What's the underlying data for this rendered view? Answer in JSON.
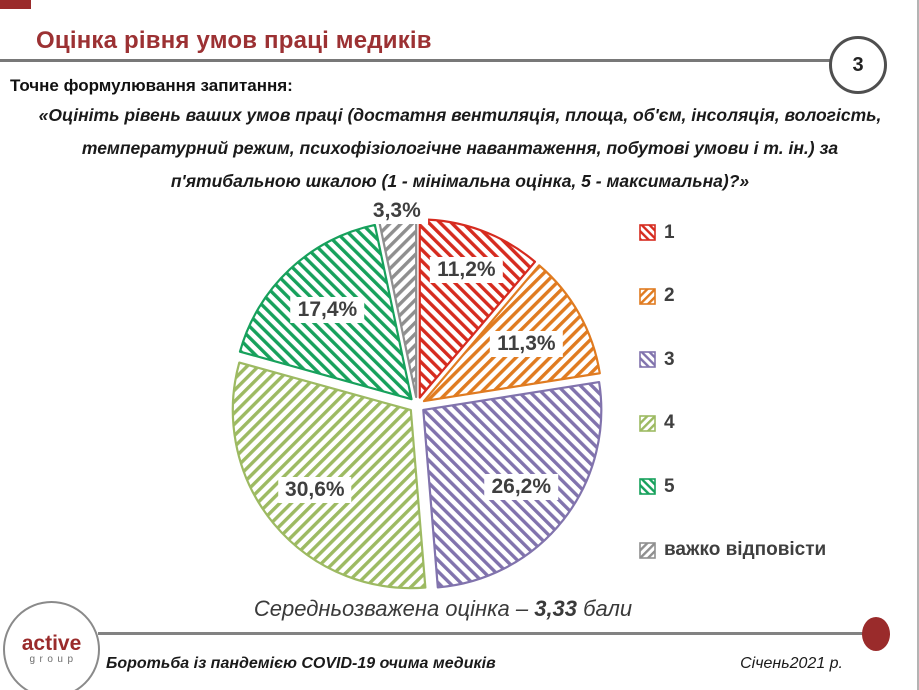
{
  "theme": {
    "accent_red": "#9A2B2B",
    "title_red": "#9C3133",
    "rule_gray": "#787878",
    "label_text_gray": "#3F3F3F"
  },
  "header": {
    "title": "Оцінка рівня умов праці медиків",
    "page_number": "3"
  },
  "question": {
    "label": "Точне формулювання запитання:",
    "lines": [
      "«Оцініть рівень ваших умов праці (достатня вентиляція, площа, об'єм, інсоляція, вологість,",
      "температурний режим, психофізіологічне навантаження, побутові умови і т. ін.) за",
      "п'ятибальною шкалою (1 - мінімальна оцінка, 5 - максимальна)?»"
    ]
  },
  "chart_data": {
    "type": "pie",
    "title": "",
    "unit": "%",
    "start_angle_deg": 0,
    "direction": "clockwise",
    "legend_position": "right",
    "slices": [
      {
        "label": "1",
        "value": 11.2,
        "display": "11,2%",
        "color": "#D62B1F",
        "hatch": "\\"
      },
      {
        "label": "2",
        "value": 11.3,
        "display": "11,3%",
        "color": "#E07B20",
        "hatch": "/"
      },
      {
        "label": "3",
        "value": 26.2,
        "display": "26,2%",
        "color": "#8173AD",
        "hatch": "\\"
      },
      {
        "label": "4",
        "value": 30.6,
        "display": "30,6%",
        "color": "#9DBA62",
        "hatch": "/"
      },
      {
        "label": "5",
        "value": 17.4,
        "display": "17,4%",
        "color": "#17A15C",
        "hatch": "\\"
      },
      {
        "label": "важко відповісти",
        "value": 3.3,
        "display": "3,3%",
        "color": "#8F8F8F",
        "hatch": "/"
      }
    ]
  },
  "summary": {
    "prefix": "Середньозважена оцінка – ",
    "value": "3,33",
    "suffix": " бали"
  },
  "footer": {
    "logo_line1": "active",
    "logo_line2": "group",
    "report_title": "Боротьба із пандемією COVID-19 очима медиків",
    "date": "Січень2021 р."
  }
}
